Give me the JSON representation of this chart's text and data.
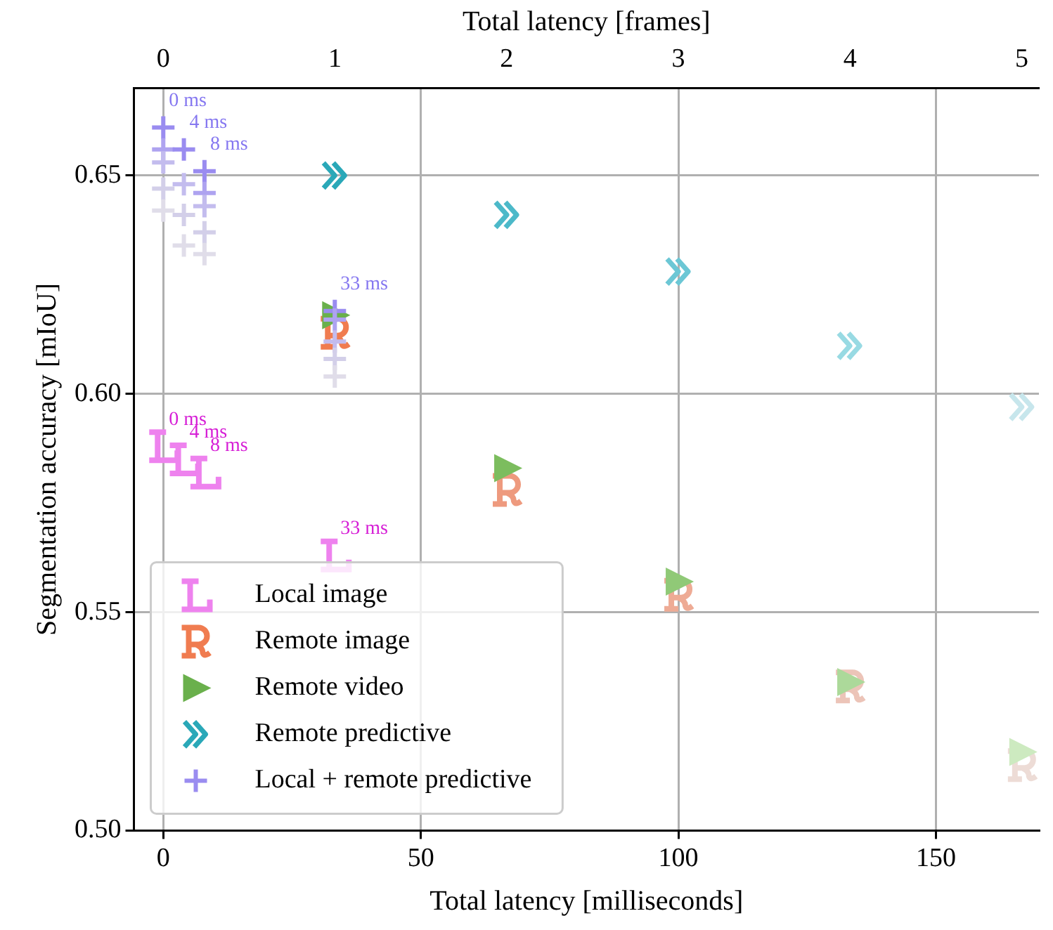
{
  "chart_data": {
    "type": "scatter",
    "xlabel": "Total latency [milliseconds]",
    "ylabel": "Segmentation accuracy [mIoU]",
    "x2label": "Total latency [frames]",
    "xlim": [
      -5.7,
      170
    ],
    "xticks": [
      0,
      50,
      100,
      150
    ],
    "x2lim": [
      -0.171,
      5.1
    ],
    "x2ticks": [
      0,
      1,
      2,
      3,
      4,
      5
    ],
    "ylim": [
      0.5,
      0.67
    ],
    "yticks": [
      {
        "value": 0.5,
        "label": "0.50"
      },
      0.55,
      {
        "value": 0.6,
        "label": "0.60"
      },
      0.65
    ],
    "grid": true,
    "legend": "bottom left",
    "series": [
      {
        "name": "Local image",
        "color": "#ee82ee",
        "colors": [
          "#ee82ee",
          "#ee82ee",
          "#ee82ee",
          "#ee82ee"
        ],
        "x": [
          0,
          4,
          8,
          33.3
        ],
        "values": [
          0.588,
          0.585,
          0.582,
          0.563
        ]
      },
      {
        "name": "Remote image",
        "color": "#f07c50",
        "colors": [
          "#f07c50",
          "#ee9a7e",
          "#eeab95",
          "#ecc4b8",
          "#eddcd6"
        ],
        "x": [
          33.3,
          66.7,
          100,
          133.3,
          166.7
        ],
        "values": [
          0.614,
          0.578,
          0.554,
          0.533,
          0.515
        ]
      },
      {
        "name": "Remote video",
        "marker": "triangle",
        "color": "#6ab04c",
        "colors": [
          "#6ab04c",
          "#7cbd5e",
          "#90c977",
          "#acd99a",
          "#cdeac0"
        ],
        "x": [
          33.3,
          66.7,
          100,
          133.3,
          166.7
        ],
        "values": [
          0.618,
          0.583,
          0.557,
          0.534,
          0.518
        ]
      },
      {
        "name": "Remote predictive",
        "color": "#2aa8b8",
        "colors": [
          "#2aa8b8",
          "#4cb9c9",
          "#6cc7d5",
          "#98dae3",
          "#c7e6ec"
        ],
        "x": [
          33.3,
          66.7,
          100,
          133.3,
          166.7
        ],
        "values": [
          0.65,
          0.641,
          0.628,
          0.611,
          0.597
        ]
      },
      {
        "name": "Local + remote predictive",
        "marker": "cross",
        "color": "#9a8cf0",
        "colors": [
          "#9a8cf0",
          "#aea3f0",
          "#c3bcee",
          "#d3cfe9",
          "#e0dde9",
          "#9a8cf0",
          "#c3bcee",
          "#d3cfe9",
          "#e0dde9",
          "#9a8cf0",
          "#aea3f0",
          "#c3bcee",
          "#d3cfe9",
          "#e0dde9",
          "#9a8cf0",
          "#aea3f0",
          "#c3bcee",
          "#d3cfe9",
          "#e0dde9"
        ],
        "x": [
          0,
          0,
          0,
          0,
          0,
          4,
          4,
          4,
          4,
          8,
          8,
          8,
          8,
          8,
          33.3,
          33.3,
          33.3,
          33.3,
          33.3
        ],
        "values": [
          0.661,
          0.656,
          0.653,
          0.647,
          0.642,
          0.656,
          0.648,
          0.641,
          0.634,
          0.651,
          0.646,
          0.643,
          0.637,
          0.632,
          0.619,
          0.617,
          0.612,
          0.608,
          0.604
        ]
      }
    ],
    "annotations": [
      {
        "text": "0 ms",
        "x": 0,
        "y": 0.661
      },
      {
        "text": "4 ms",
        "x": 4,
        "y": 0.656
      },
      {
        "text": "8 ms",
        "x": 8,
        "y": 0.651
      },
      {
        "text": "33 ms",
        "x": 33.3,
        "y": 0.619
      },
      {
        "text": "0 ms",
        "x": 0,
        "y": 0.588
      },
      {
        "text": "4 ms",
        "x": 4,
        "y": 0.585
      },
      {
        "text": "8 ms",
        "x": 8,
        "y": 0.582
      },
      {
        "text": "33 ms",
        "x": 33.3,
        "y": 0.563
      }
    ]
  }
}
